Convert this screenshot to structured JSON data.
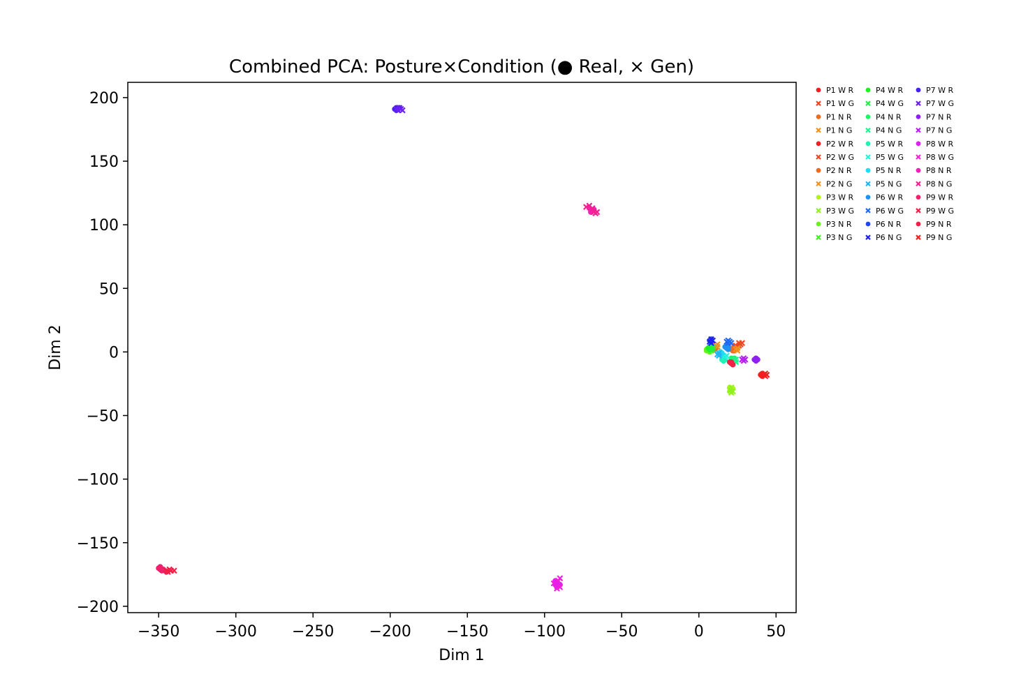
{
  "chart_data": {
    "type": "scatter",
    "title": "Combined PCA: Posture×Condition (● Real, × Gen)",
    "xlabel": "Dim 1",
    "ylabel": "Dim 2",
    "xlim": [
      -370,
      63
    ],
    "ylim": [
      -205,
      212
    ],
    "xticks": [
      -350,
      -300,
      -250,
      -200,
      -150,
      -100,
      -50,
      0,
      50
    ],
    "yticks": [
      -200,
      -150,
      -100,
      -50,
      0,
      50,
      100,
      150,
      200
    ],
    "grid": false,
    "legend_placement": "outside-top-right",
    "series": [
      {
        "name": "P1 W R",
        "marker": "o",
        "color": "#f22020",
        "points": [
          [
            22,
            2
          ],
          [
            23,
            3
          ],
          [
            24,
            2
          ],
          [
            23,
            1
          ]
        ]
      },
      {
        "name": "P1 W G",
        "marker": "x",
        "color": "#f24520",
        "points": [
          [
            26,
            5
          ],
          [
            27,
            6
          ],
          [
            28,
            7
          ],
          [
            26,
            7
          ]
        ]
      },
      {
        "name": "P1 N R",
        "marker": "o",
        "color": "#f26a20",
        "points": [
          [
            9,
            3
          ],
          [
            10,
            4
          ],
          [
            11,
            3
          ],
          [
            10,
            2
          ]
        ]
      },
      {
        "name": "P1 N G",
        "marker": "x",
        "color": "#f29020",
        "points": [
          [
            11,
            5
          ],
          [
            12,
            4
          ],
          [
            12,
            6
          ]
        ]
      },
      {
        "name": "P2 W R",
        "marker": "o",
        "color": "#f22020",
        "points": [
          [
            40,
            -18
          ],
          [
            41,
            -19
          ],
          [
            42,
            -18
          ],
          [
            41,
            -17
          ]
        ]
      },
      {
        "name": "P2 W G",
        "marker": "x",
        "color": "#f24520",
        "points": [
          [
            23,
            4
          ],
          [
            24,
            3
          ],
          [
            25,
            4
          ],
          [
            24,
            5
          ]
        ]
      },
      {
        "name": "P2 N R",
        "marker": "o",
        "color": "#f26a20",
        "points": [
          [
            21,
            2
          ],
          [
            22,
            3
          ],
          [
            22,
            1
          ]
        ]
      },
      {
        "name": "P2 N G",
        "marker": "x",
        "color": "#f29020",
        "points": [
          [
            24,
            2
          ],
          [
            25,
            3
          ],
          [
            25,
            1
          ]
        ]
      },
      {
        "name": "P3 W R",
        "marker": "o",
        "color": "#b5f220",
        "points": [
          [
            20,
            -28
          ],
          [
            21,
            -30
          ],
          [
            22,
            -29
          ],
          [
            21,
            -31
          ],
          [
            20,
            -31
          ]
        ]
      },
      {
        "name": "P3 W G",
        "marker": "x",
        "color": "#90f220",
        "points": [
          [
            20,
            -30
          ],
          [
            21,
            -28
          ],
          [
            22,
            -31
          ],
          [
            21,
            -32
          ]
        ]
      },
      {
        "name": "P3 N R",
        "marker": "o",
        "color": "#6af220",
        "points": [
          [
            5,
            1
          ],
          [
            6,
            2
          ],
          [
            7,
            0
          ],
          [
            6,
            1
          ],
          [
            5,
            2
          ]
        ]
      },
      {
        "name": "P3 N G",
        "marker": "x",
        "color": "#45f220",
        "points": [
          [
            7,
            2
          ],
          [
            8,
            1
          ],
          [
            8,
            3
          ]
        ]
      },
      {
        "name": "P4 W R",
        "marker": "o",
        "color": "#20f220",
        "points": [
          [
            6,
            3
          ],
          [
            7,
            2
          ],
          [
            8,
            4
          ],
          [
            7,
            4
          ]
        ]
      },
      {
        "name": "P4 W G",
        "marker": "x",
        "color": "#20f245",
        "points": [
          [
            8,
            3
          ],
          [
            9,
            2
          ],
          [
            9,
            4
          ]
        ]
      },
      {
        "name": "P4 N R",
        "marker": "o",
        "color": "#20f26a",
        "points": [
          [
            21,
            -5
          ],
          [
            22,
            -6
          ],
          [
            23,
            -5
          ]
        ]
      },
      {
        "name": "P4 N G",
        "marker": "x",
        "color": "#20f290",
        "points": [
          [
            23,
            -7
          ],
          [
            24,
            -6
          ],
          [
            24,
            -8
          ]
        ]
      },
      {
        "name": "P5 W R",
        "marker": "o",
        "color": "#20f2b5",
        "points": [
          [
            15,
            -6
          ],
          [
            16,
            -5
          ],
          [
            17,
            -6
          ],
          [
            16,
            -7
          ]
        ]
      },
      {
        "name": "P5 W G",
        "marker": "x",
        "color": "#20f2db",
        "points": [
          [
            16,
            -3
          ],
          [
            17,
            -4
          ],
          [
            18,
            -3
          ]
        ]
      },
      {
        "name": "P5 N R",
        "marker": "o",
        "color": "#20dbf2",
        "points": [
          [
            13,
            -1
          ],
          [
            14,
            -2
          ],
          [
            15,
            -1
          ],
          [
            14,
            0
          ]
        ]
      },
      {
        "name": "P5 N G",
        "marker": "x",
        "color": "#20b5f2",
        "points": [
          [
            12,
            -2
          ],
          [
            13,
            -3
          ],
          [
            13,
            -1
          ]
        ]
      },
      {
        "name": "P6 W R",
        "marker": "o",
        "color": "#2090f2",
        "points": [
          [
            17,
            4
          ],
          [
            18,
            3
          ],
          [
            19,
            4
          ],
          [
            18,
            5
          ],
          [
            19,
            2
          ]
        ]
      },
      {
        "name": "P6 W G",
        "marker": "x",
        "color": "#206af2",
        "points": [
          [
            18,
            8
          ],
          [
            19,
            7
          ],
          [
            20,
            8
          ],
          [
            21,
            7
          ],
          [
            19,
            9
          ]
        ]
      },
      {
        "name": "P6 N R",
        "marker": "o",
        "color": "#2045f2",
        "points": [
          [
            7,
            9
          ],
          [
            8,
            8
          ],
          [
            8,
            10
          ]
        ]
      },
      {
        "name": "P6 N G",
        "marker": "x",
        "color": "#2020f2",
        "points": [
          [
            7,
            8
          ],
          [
            8,
            10
          ],
          [
            9,
            9
          ],
          [
            8,
            7
          ]
        ]
      },
      {
        "name": "P7 W R",
        "marker": "o",
        "color": "#4520f2",
        "points": [
          [
            -197,
            191
          ],
          [
            -196,
            192
          ],
          [
            -195,
            191
          ],
          [
            -194,
            192
          ],
          [
            -196,
            190
          ]
        ]
      },
      {
        "name": "P7 W G",
        "marker": "x",
        "color": "#6a20f2",
        "points": [
          [
            -195,
            190
          ],
          [
            -193,
            191
          ],
          [
            -192,
            190
          ],
          [
            -194,
            192
          ],
          [
            -196,
            191
          ]
        ]
      },
      {
        "name": "P7 N R",
        "marker": "o",
        "color": "#9020f2",
        "points": [
          [
            36,
            -6
          ],
          [
            37,
            -7
          ],
          [
            38,
            -6
          ],
          [
            37,
            -5
          ]
        ]
      },
      {
        "name": "P7 N G",
        "marker": "x",
        "color": "#b520f2",
        "points": [
          [
            29,
            -5
          ],
          [
            30,
            -6
          ],
          [
            29,
            -7
          ],
          [
            28,
            -6
          ]
        ]
      },
      {
        "name": "P8 W R",
        "marker": "o",
        "color": "#db20f2",
        "points": [
          [
            -93,
            -180
          ],
          [
            -92,
            -182
          ],
          [
            -91,
            -184
          ],
          [
            -92,
            -185
          ],
          [
            -90,
            -183
          ],
          [
            -93,
            -183
          ]
        ]
      },
      {
        "name": "P8 W G",
        "marker": "x",
        "color": "#f220db",
        "points": [
          [
            -90,
            -178
          ],
          [
            -91,
            -180
          ],
          [
            -92,
            -186
          ],
          [
            -94,
            -182
          ],
          [
            -90,
            -185
          ]
        ]
      },
      {
        "name": "P8 N R",
        "marker": "o",
        "color": "#f220b5",
        "points": [
          [
            -71,
            113
          ],
          [
            -70,
            112
          ],
          [
            -69,
            111
          ],
          [
            -68,
            112
          ],
          [
            -70,
            110
          ]
        ]
      },
      {
        "name": "P8 N G",
        "marker": "x",
        "color": "#f22090",
        "points": [
          [
            -73,
            114
          ],
          [
            -71,
            115
          ],
          [
            -68,
            110
          ],
          [
            -67,
            109
          ],
          [
            -66,
            110
          ],
          [
            -69,
            113
          ]
        ]
      },
      {
        "name": "P9 W R",
        "marker": "o",
        "color": "#f2206a",
        "points": [
          [
            -350,
            -170
          ],
          [
            -349,
            -171
          ],
          [
            -348,
            -172
          ],
          [
            -347,
            -171
          ],
          [
            -346,
            -172
          ],
          [
            -345,
            -173
          ],
          [
            -349,
            -169
          ]
        ]
      },
      {
        "name": "P9 W G",
        "marker": "x",
        "color": "#f22045",
        "points": [
          [
            -345,
            -172
          ],
          [
            -344,
            -173
          ],
          [
            -342,
            -172
          ],
          [
            -340,
            -172
          ],
          [
            -343,
            -171
          ]
        ]
      },
      {
        "name": "P9 N R",
        "marker": "o",
        "color": "#f22045",
        "points": [
          [
            20,
            -8
          ],
          [
            21,
            -9
          ],
          [
            22,
            -10
          ],
          [
            21,
            -8
          ]
        ]
      },
      {
        "name": "P9 N G",
        "marker": "x",
        "color": "#f22020",
        "points": [
          [
            42,
            -18
          ],
          [
            43,
            -19
          ],
          [
            44,
            -18
          ],
          [
            43,
            -17
          ]
        ]
      }
    ]
  }
}
